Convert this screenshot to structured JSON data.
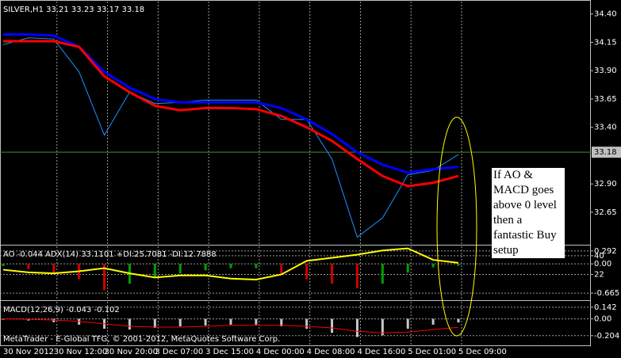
{
  "chart_data": [
    {
      "type": "line",
      "title": "SILVER,H1  33.21 33.23 33.17 33.18",
      "categories": [
        "30 Nov 2012",
        null,
        "30 Nov 12:00",
        null,
        "30 Nov 20:00",
        null,
        "3 Dec 07:00",
        null,
        "3 Dec 15:00",
        null,
        "4 Dec 00:00",
        null,
        "4 Dec 08:00",
        null,
        "4 Dec 16:00",
        null,
        "5 Dec 01:00",
        null,
        "5 Dec 09:00"
      ],
      "series": [
        {
          "color": "#1e90ff",
          "width": 1,
          "values": [
            34.13,
            34.19,
            34.18,
            33.89,
            33.33,
            33.71,
            33.61,
            33.62,
            33.64,
            33.64,
            33.64,
            33.47,
            33.47,
            33.12,
            32.43,
            32.6,
            32.98,
            33.02,
            33.16
          ]
        },
        {
          "color": "#0000ff",
          "width": 3,
          "values": [
            34.22,
            34.22,
            34.21,
            34.11,
            33.89,
            33.75,
            33.65,
            33.62,
            33.62,
            33.62,
            33.62,
            33.57,
            33.47,
            33.34,
            33.18,
            33.07,
            33.0,
            33.03,
            33.05
          ]
        },
        {
          "color": "#ff0000",
          "width": 3,
          "values": [
            34.16,
            34.16,
            34.16,
            34.11,
            33.85,
            33.71,
            33.59,
            33.55,
            33.57,
            33.57,
            33.56,
            33.5,
            33.4,
            33.28,
            33.12,
            32.97,
            32.88,
            32.91,
            32.97
          ]
        }
      ],
      "ylim": [
        32.37,
        34.51
      ],
      "yticks": [
        {
          "value": 34.4,
          "label": "34.40"
        },
        {
          "value": 34.15,
          "label": "34.15"
        },
        {
          "value": 33.9,
          "label": "33.90"
        },
        {
          "value": 33.65,
          "label": "33.65"
        },
        {
          "value": 33.4,
          "label": "33.40"
        },
        {
          "value": 32.9,
          "label": "32.90"
        },
        {
          "value": 32.65,
          "label": "32.65"
        }
      ],
      "price_line": {
        "value": 33.18,
        "label": "33.18",
        "color": "#4f8a2c"
      },
      "grid": false,
      "xgrid": true
    },
    {
      "type": "bar",
      "title": "AO -0.044  ADX(14) 33.1101 +DI:25.7081 -DI:12.7888",
      "series": [
        {
          "type": "bar",
          "color": "#00a000",
          "down_color": "#d00000",
          "values": [
            -0.05,
            -0.12,
            -0.2,
            -0.35,
            -0.6,
            -0.45,
            -0.3,
            -0.22,
            -0.15,
            -0.1,
            -0.1,
            -0.25,
            -0.35,
            -0.45,
            -0.55,
            -0.45,
            -0.2,
            -0.08,
            -0.044
          ]
        },
        {
          "type": "line",
          "axis": "y2",
          "color": "#ffff00",
          "width": 2,
          "values": [
            26.5,
            24,
            23,
            25,
            28,
            23,
            19,
            21,
            21,
            18,
            17,
            22,
            35,
            38,
            41,
            45,
            47,
            36,
            33.1
          ]
        }
      ],
      "ylim": [
        -0.807,
        0.398
      ],
      "yticks": [
        0.292,
        {
          "value": 0,
          "label": "0.00"
        },
        -0.665
      ],
      "y2lim": [
        -2,
        49
      ],
      "y2ticks": [
        40,
        22
      ],
      "grid": true,
      "xgrid": true
    },
    {
      "type": "bar",
      "title": "MACD(12,26,9) -0.043 -0.102",
      "series": [
        {
          "type": "bar",
          "color": "#c8c8c8",
          "values": [
            -0.01,
            -0.02,
            -0.04,
            -0.07,
            -0.12,
            -0.13,
            -0.11,
            -0.09,
            -0.08,
            -0.07,
            -0.07,
            -0.09,
            -0.12,
            -0.17,
            -0.22,
            -0.2,
            -0.12,
            -0.07,
            -0.043
          ]
        },
        {
          "type": "line",
          "color": "#ff0000",
          "width": 1,
          "values": [
            0,
            -0.005,
            -0.015,
            -0.03,
            -0.06,
            -0.09,
            -0.1,
            -0.1,
            -0.09,
            -0.08,
            -0.08,
            -0.08,
            -0.09,
            -0.11,
            -0.15,
            -0.17,
            -0.16,
            -0.13,
            -0.102
          ]
        }
      ],
      "ylim": [
        -0.331,
        0.208
      ],
      "yticks": [
        0.142,
        {
          "value": 0,
          "label": "0.00"
        },
        -0.204
      ],
      "grid": true,
      "xgrid": true
    }
  ],
  "annotation": "If AO & MACD goes above 0 level then a fantastic Buy setup",
  "footer": "MetaTrader - E-Global TFG, © 2001-2012, MetaQuotes Software Corp."
}
